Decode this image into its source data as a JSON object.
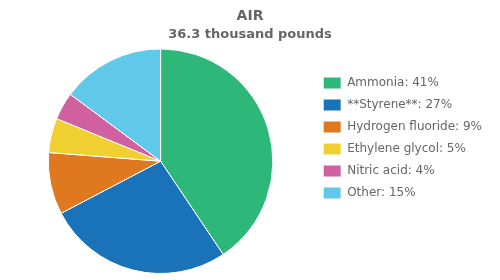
{
  "chart_data": {
    "type": "pie",
    "title": "AIR",
    "subtitle": "36.3 thousand pounds",
    "categories": [
      "Ammonia: 41%",
      "**Styrene**: 27%",
      "Hydrogen fluoride: 9%",
      "Ethylene glycol: 5%",
      "Nitric acid: 4%",
      "Other: 15%"
    ],
    "values": [
      41,
      27,
      9,
      5,
      4,
      15
    ],
    "colors": [
      "#2db87a",
      "#1a72b8",
      "#e07820",
      "#f0d030",
      "#d060a0",
      "#60c8e8"
    ],
    "legend": "right"
  }
}
